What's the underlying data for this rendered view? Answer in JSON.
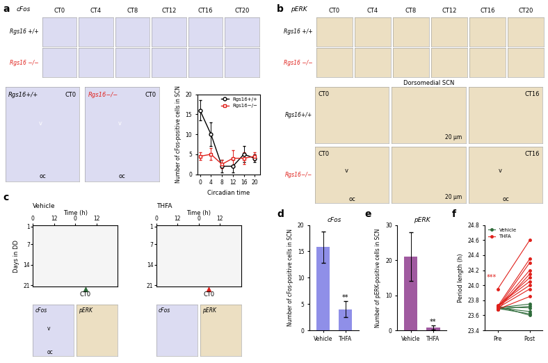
{
  "chart_data": [
    {
      "type": "line",
      "x": [
        0,
        4,
        8,
        12,
        16,
        20
      ],
      "xlim": [
        -1,
        22
      ],
      "xticks": [
        0,
        4,
        8,
        12,
        16,
        20
      ],
      "ylim": [
        0,
        20
      ],
      "yticks": [
        0,
        5,
        10,
        15,
        20
      ],
      "x_label": "Circadian time",
      "y_label": "Number of cFos-positive cells in SCN",
      "legend": "upper right",
      "series": [
        {
          "name": "Rgs16+/+",
          "color": "#000000",
          "marker": "o",
          "values": [
            16,
            10,
            2,
            2,
            5,
            4
          ],
          "errors": [
            2.5,
            3,
            1.5,
            1.5,
            2,
            1
          ]
        },
        {
          "name": "Rgs16−/−",
          "color": "#e0201b",
          "marker": "s",
          "values": [
            4.5,
            5,
            2.5,
            4,
            4,
            4.5
          ],
          "errors": [
            1,
            1.5,
            1,
            2,
            1.5,
            1
          ]
        }
      ]
    },
    {
      "type": "bar",
      "panel": "d",
      "title": "cFos",
      "categories": [
        "Vehicle",
        "THFA"
      ],
      "values": [
        15.8,
        4
      ],
      "errors": [
        3,
        1.5
      ],
      "color": "#8f8fe8",
      "ylim": [
        0,
        20
      ],
      "yticks": [
        0,
        5,
        10,
        15,
        20
      ],
      "y_label": "Number of cFos-positive cells in SCN",
      "annotations": [
        {
          "text": "**",
          "category": "THFA"
        }
      ]
    },
    {
      "type": "bar",
      "panel": "e",
      "title": "pERK",
      "categories": [
        "Vehicle",
        "THFA"
      ],
      "values": [
        21,
        0.8
      ],
      "errors": [
        7,
        0.5
      ],
      "color": "#a05aa0",
      "ylim": [
        0,
        30
      ],
      "yticks": [
        0,
        10,
        20,
        30
      ],
      "y_label": "Number of pERK-positive cells in SCN",
      "annotations": [
        {
          "text": "**",
          "category": "THFA"
        }
      ]
    },
    {
      "type": "paired_line",
      "panel": "f",
      "categories": [
        "Pre",
        "Post"
      ],
      "ylim": [
        23.4,
        24.8
      ],
      "yticks": [
        23.4,
        23.6,
        23.8,
        {
          "value": 24.0,
          "label": "24.0"
        },
        24.2,
        24.4,
        24.6,
        24.8
      ],
      "y_label": "Period length (h)",
      "legend": "upper left",
      "annotation": "***",
      "series": [
        {
          "name": "Vehicle",
          "color": "#2e6b3a",
          "marker": "o",
          "values": [
            [
              23.7,
              23.75
            ],
            [
              23.72,
              23.6
            ],
            [
              23.68,
              23.72
            ],
            [
              23.7,
              23.65
            ],
            [
              23.69,
              23.62
            ],
            [
              23.71,
              23.7
            ]
          ]
        },
        {
          "name": "THFA",
          "color": "#e0201b",
          "marker": "o",
          "values": [
            [
              23.95,
              24.6
            ],
            [
              23.72,
              24.35
            ],
            [
              23.7,
              24.3
            ],
            [
              23.7,
              24.2
            ],
            [
              23.68,
              24.15
            ],
            [
              23.72,
              24.1
            ],
            [
              23.73,
              24.05
            ],
            [
              23.7,
              23.95
            ],
            [
              23.68,
              23.85
            ],
            [
              23.72,
              24.0
            ]
          ]
        }
      ]
    }
  ],
  "images": {
    "a": {
      "label": "a",
      "stain": "cFos",
      "columns": [
        "CT0",
        "CT4",
        "CT8",
        "CT12",
        "CT16",
        "CT20"
      ],
      "rows": [
        {
          "text": "Rgs16 +/+",
          "color": "#000000"
        },
        {
          "text": "Rgs16 −/−",
          "color": "#e0201b"
        }
      ],
      "closeups": [
        {
          "genotype": "Rgs16+/+",
          "color": "#000000",
          "time": "CT0",
          "marks": [
            "v",
            "oc"
          ]
        },
        {
          "genotype": "Rgs16−/−",
          "color": "#e0201b",
          "time": "CT0",
          "marks": [
            "v",
            "oc"
          ]
        }
      ]
    },
    "b": {
      "label": "b",
      "stain": "pERK",
      "columns": [
        "CT0",
        "CT4",
        "CT8",
        "CT12",
        "CT16",
        "CT20"
      ],
      "rows": [
        {
          "text": "Rgs16 +/+",
          "color": "#000000"
        },
        {
          "text": "Rgs16 −/−",
          "color": "#e0201b"
        }
      ],
      "closeup_rows": [
        {
          "genotype": "Rgs16+/+",
          "color": "#000000",
          "panels": [
            {
              "time": "CT0",
              "marks": []
            },
            {
              "title": "Dorsomedial SCN",
              "scale": "20 μm"
            },
            {
              "time": "CT16",
              "marks": []
            }
          ]
        },
        {
          "genotype": "Rgs16−/−",
          "color": "#e0201b",
          "panels": [
            {
              "time": "CT0",
              "marks": [
                "v",
                "oc"
              ]
            },
            {
              "title": "Dorsomedial SCN",
              "scale": "20 μm"
            },
            {
              "time": "CT16",
              "marks": [
                "v",
                "oc"
              ]
            }
          ]
        }
      ]
    },
    "c": {
      "label": "c",
      "x_label": "Time (h)",
      "xlim": [
        0,
        48
      ],
      "x_ticks": [
        {
          "value": 0,
          "label": "0"
        },
        {
          "value": 12,
          "label": "12"
        },
        {
          "value": 24,
          "label": "0"
        },
        {
          "value": 36,
          "label": "12"
        }
      ],
      "y_label": "Days in DD",
      "ylim": [
        21.5,
        0.5
      ],
      "y_ticks": [
        1,
        7,
        14,
        21
      ],
      "marker": "CT0",
      "actograms": [
        {
          "title": "Vehicle",
          "color": "#2e6b3a"
        },
        {
          "title": "THFA",
          "color": "#e0201b"
        }
      ],
      "stains": [
        "cFos",
        "pERK"
      ],
      "marks": [
        "v",
        "oc"
      ]
    }
  }
}
